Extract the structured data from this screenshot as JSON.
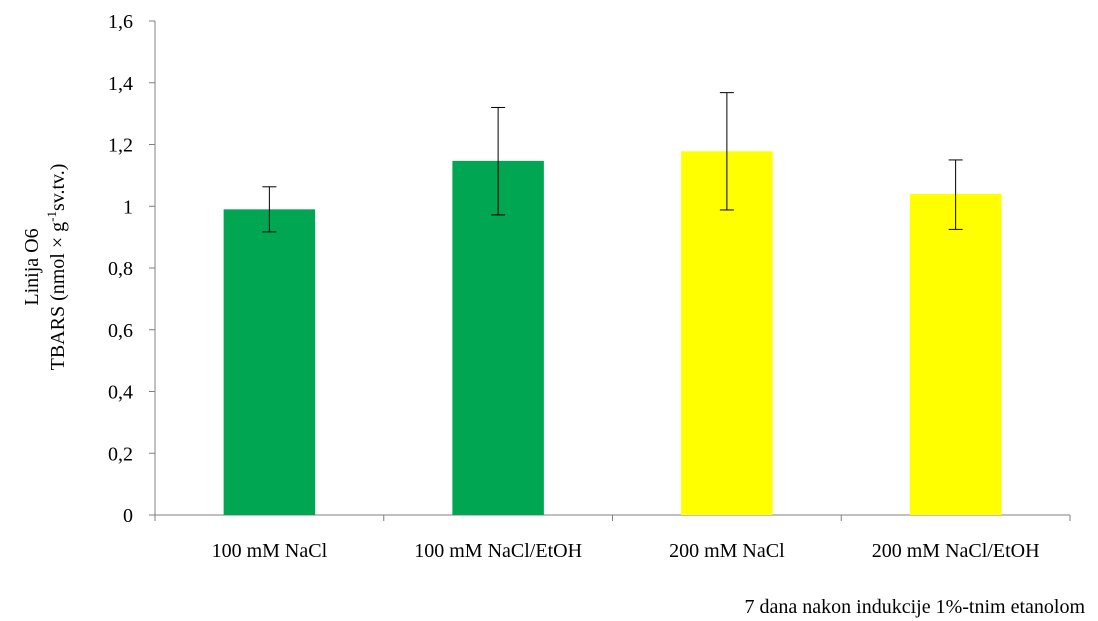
{
  "chart_data": {
    "type": "bar",
    "title": "",
    "categories": [
      "100 mM NaCl",
      "100 mM NaCl/EtOH",
      "200 mM NaCl",
      "200 mM NaCl/EtOH"
    ],
    "values": [
      0.99,
      1.147,
      1.178,
      1.04
    ],
    "errors_plus": [
      0.073,
      0.173,
      0.19,
      0.11
    ],
    "errors_minus": [
      0.073,
      0.175,
      0.19,
      0.115
    ],
    "bar_colors": [
      "#00a651",
      "#00a651",
      "#ffff00",
      "#ffff00"
    ],
    "xlabel": "7 dana nakon indukcije 1%-tnim etanolom",
    "ylabel_line1": "Linija O6",
    "ylabel_line2_prefix": "TBARS (nmol × g",
    "ylabel_line2_sup": "-1",
    "ylabel_line2_suffix": "sv.tv.)",
    "ylim": [
      0,
      1.6
    ],
    "y_ticks": [
      "0",
      "0,2",
      "0,4",
      "0,6",
      "0,8",
      "1",
      "1,2",
      "1,4",
      "1,6"
    ],
    "grid": false,
    "legend": "none"
  }
}
